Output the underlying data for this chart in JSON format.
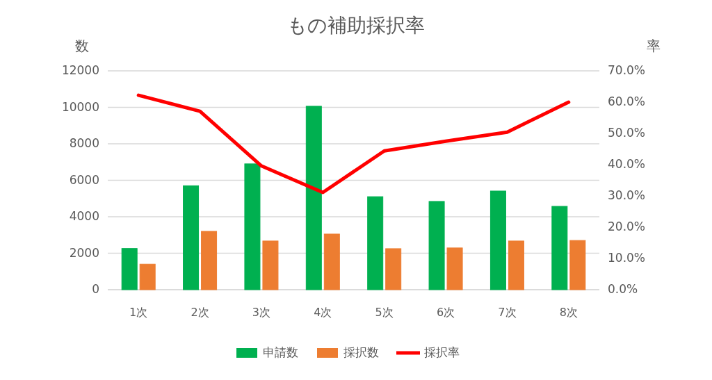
{
  "chart_data": {
    "type": "bar",
    "title": "もの補助採択率",
    "ylabel": "数",
    "y2label": "率",
    "categories": [
      "1次",
      "2次",
      "3次",
      "4次",
      "5次",
      "6次",
      "7次",
      "8次"
    ],
    "series": [
      {
        "name": "申請数",
        "color": "#00b050",
        "values": [
          2260,
          5700,
          6900,
          10060,
          5100,
          4840,
          5410,
          4570
        ]
      },
      {
        "name": "採択数",
        "color": "#ed7d31",
        "values": [
          1400,
          3200,
          2670,
          3050,
          2250,
          2290,
          2670,
          2700
        ]
      },
      {
        "name": "採択率",
        "type": "line",
        "axis": "y2",
        "color": "#ff0000",
        "values": [
          62.2,
          57.1,
          39.6,
          31.1,
          44.4,
          47.5,
          50.4,
          60.0
        ]
      }
    ],
    "ylim": [
      0,
      12000
    ],
    "yticks": [
      0,
      2000,
      4000,
      6000,
      8000,
      10000,
      12000
    ],
    "y2lim": [
      0,
      70
    ],
    "y2ticks": [
      {
        "value": 0,
        "label": "0.0%"
      },
      {
        "value": 10,
        "label": "10.0%"
      },
      {
        "value": 20,
        "label": "20.0%"
      },
      {
        "value": 30,
        "label": "30.0%"
      },
      {
        "value": 40,
        "label": "40.0%"
      },
      {
        "value": 50,
        "label": "50.0%"
      },
      {
        "value": 60,
        "label": "60.0%"
      },
      {
        "value": 70,
        "label": "70.0%"
      }
    ],
    "grid": "y",
    "legend": "bottom"
  }
}
